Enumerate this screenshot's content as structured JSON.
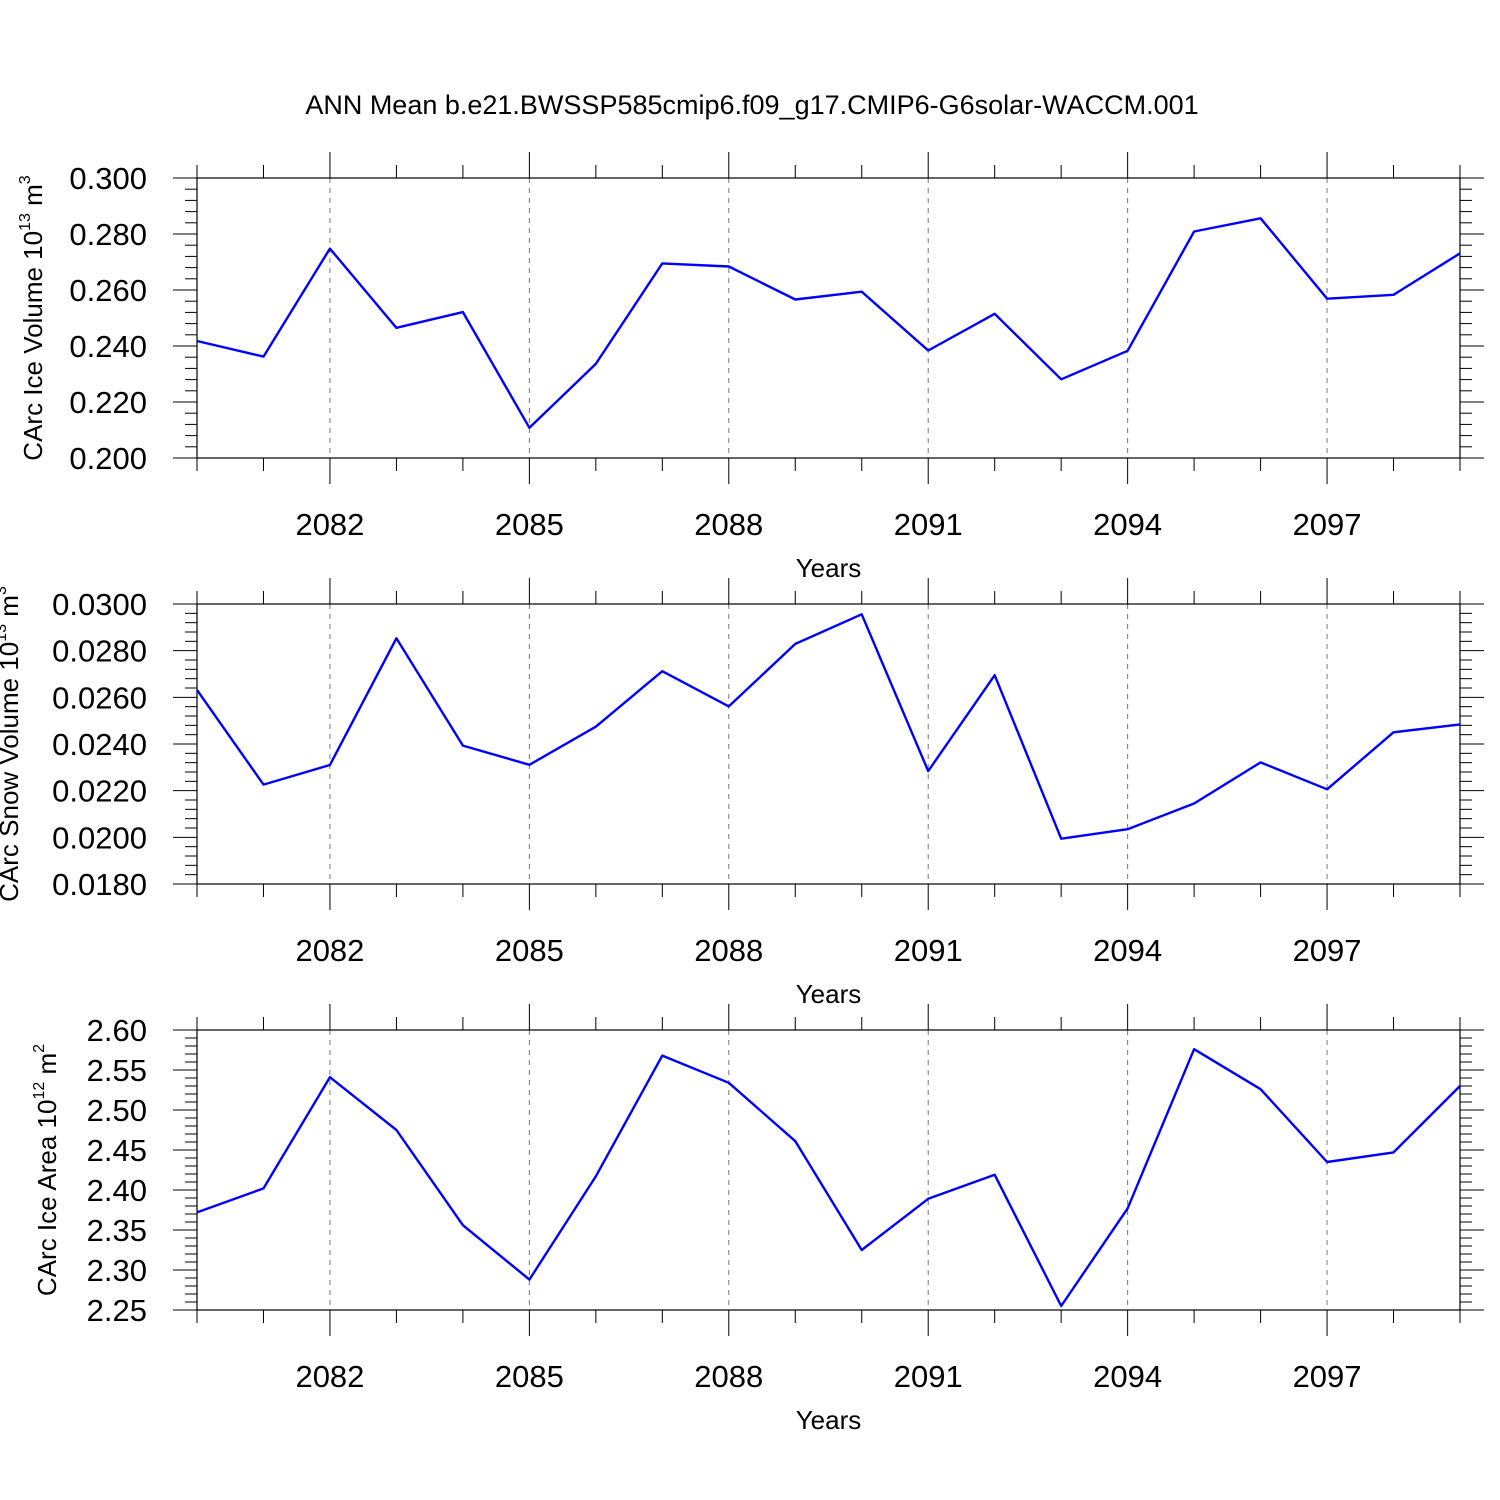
{
  "title": "ANN Mean b.e21.BWSSP585cmip6.f09_g17.CMIP6-G6solar-WACCM.001",
  "series_color": "#0000ff",
  "chart_data": [
    {
      "type": "line",
      "xlabel": "Years",
      "ylabel": {
        "pre": "CArc Ice Volume 10",
        "exp": "13",
        "post": " m",
        "unit_exp": "3"
      },
      "xlim": [
        2080,
        2099
      ],
      "ylim": [
        0.2,
        0.3
      ],
      "xticks": [
        2082,
        2085,
        2088,
        2091,
        2094,
        2097
      ],
      "yticks": [
        0.2,
        0.22,
        0.24,
        0.26,
        0.28,
        0.3
      ],
      "ytick_labels": [
        "0.200",
        "0.220",
        "0.240",
        "0.260",
        "0.280",
        "0.300"
      ],
      "grid": "vertical-dashed-at-major-x",
      "x": [
        2080,
        2081,
        2082,
        2083,
        2084,
        2085,
        2086,
        2087,
        2088,
        2089,
        2090,
        2091,
        2092,
        2093,
        2094,
        2095,
        2096,
        2097,
        2098,
        2099
      ],
      "values": [
        0.2418,
        0.2362,
        0.2748,
        0.2465,
        0.2521,
        0.2108,
        0.2336,
        0.2695,
        0.2684,
        0.2566,
        0.2594,
        0.2384,
        0.2515,
        0.2281,
        0.2383,
        0.2809,
        0.2856,
        0.2569,
        0.2583,
        0.2731
      ]
    },
    {
      "type": "line",
      "xlabel": "Years",
      "ylabel": {
        "pre": "CArc Snow Volume 10",
        "exp": "13",
        "post": " m",
        "unit_exp": "3"
      },
      "xlim": [
        2080,
        2099
      ],
      "ylim": [
        0.018,
        0.03
      ],
      "xticks": [
        2082,
        2085,
        2088,
        2091,
        2094,
        2097
      ],
      "yticks": [
        0.018,
        0.02,
        0.022,
        0.024,
        0.026,
        0.028,
        0.03
      ],
      "ytick_labels": [
        "0.0180",
        "0.0200",
        "0.0220",
        "0.0240",
        "0.0260",
        "0.0280",
        "0.0300"
      ],
      "grid": "vertical-dashed-at-major-x",
      "x": [
        2080,
        2081,
        2082,
        2083,
        2084,
        2085,
        2086,
        2087,
        2088,
        2089,
        2090,
        2091,
        2092,
        2093,
        2094,
        2095,
        2096,
        2097,
        2098,
        2099
      ],
      "values": [
        0.02632,
        0.02226,
        0.0231,
        0.02853,
        0.02393,
        0.02311,
        0.02474,
        0.02712,
        0.02561,
        0.02829,
        0.02956,
        0.02284,
        0.02695,
        0.01994,
        0.02035,
        0.02145,
        0.02321,
        0.02206,
        0.0245,
        0.02484
      ]
    },
    {
      "type": "line",
      "xlabel": "Years",
      "ylabel": {
        "pre": "CArc Ice Area 10",
        "exp": "12",
        "post": " m",
        "unit_exp": "2"
      },
      "xlim": [
        2080,
        2099
      ],
      "ylim": [
        2.25,
        2.6
      ],
      "xticks": [
        2082,
        2085,
        2088,
        2091,
        2094,
        2097
      ],
      "yticks": [
        2.25,
        2.3,
        2.35,
        2.4,
        2.45,
        2.5,
        2.55,
        2.6
      ],
      "ytick_labels": [
        "2.25",
        "2.30",
        "2.35",
        "2.40",
        "2.45",
        "2.50",
        "2.55",
        "2.60"
      ],
      "grid": "vertical-dashed-at-major-x",
      "x": [
        2080,
        2081,
        2082,
        2083,
        2084,
        2085,
        2086,
        2087,
        2088,
        2089,
        2090,
        2091,
        2092,
        2093,
        2094,
        2095,
        2096,
        2097,
        2098,
        2099
      ],
      "values": [
        2.372,
        2.402,
        2.541,
        2.475,
        2.356,
        2.288,
        2.417,
        2.568,
        2.534,
        2.461,
        2.325,
        2.389,
        2.419,
        2.255,
        2.377,
        2.576,
        2.526,
        2.435,
        2.447,
        2.53
      ]
    }
  ]
}
